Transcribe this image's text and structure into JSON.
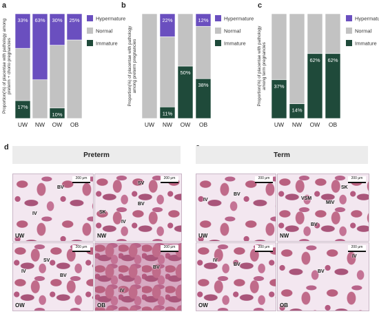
{
  "panel_letters": {
    "a": "a",
    "b": "b",
    "c": "c",
    "d": "d",
    "e": "e"
  },
  "colors": {
    "hypermature": "#6a4fbf",
    "normal": "#c2c2c2",
    "immature": "#1f4a3a"
  },
  "chart_data": [
    {
      "type": "bar",
      "stacked": true,
      "title": "",
      "ylabel": "Proportion(%) of placentae with pathology among preterm + chorio pregnancies",
      "categories": [
        "UW",
        "NW",
        "OW",
        "OB"
      ],
      "ylim": [
        0,
        100
      ],
      "legend_position": "right",
      "series": [
        {
          "name": "Immature",
          "values": [
            17,
            0,
            10,
            0
          ],
          "labels": [
            "17%",
            "",
            "10%",
            ""
          ]
        },
        {
          "name": "Normal",
          "values": [
            50,
            37,
            60,
            75
          ],
          "labels": [
            "",
            "",
            "",
            ""
          ]
        },
        {
          "name": "Hypermature",
          "values": [
            33,
            63,
            30,
            25
          ],
          "labels": [
            "33%",
            "63%",
            "30%",
            "25%"
          ]
        }
      ]
    },
    {
      "type": "bar",
      "stacked": true,
      "title": "",
      "ylabel": "Proportion(%) of placentae with pathology among preterm pregnancies",
      "categories": [
        "UW",
        "NW",
        "OW",
        "OB"
      ],
      "ylim": [
        0,
        100
      ],
      "legend_position": "right",
      "series": [
        {
          "name": "Immature",
          "values": [
            0,
            11,
            50,
            38
          ],
          "labels": [
            "",
            "11%",
            "50%",
            "38%"
          ]
        },
        {
          "name": "Normal",
          "values": [
            100,
            67,
            50,
            50
          ],
          "labels": [
            "",
            "",
            "",
            ""
          ]
        },
        {
          "name": "Hypermature",
          "values": [
            0,
            22,
            0,
            12
          ],
          "labels": [
            "",
            "22%",
            "",
            "12%"
          ]
        }
      ]
    },
    {
      "type": "bar",
      "stacked": true,
      "title": "",
      "ylabel": "Proportion(%) of placentae with pathology among term pregnancies",
      "categories": [
        "UW",
        "NW",
        "OW",
        "OB"
      ],
      "ylim": [
        0,
        100
      ],
      "legend_position": "right",
      "series": [
        {
          "name": "Immature",
          "values": [
            37,
            14,
            62,
            62
          ],
          "labels": [
            "37%",
            "14%",
            "62%",
            "62%"
          ]
        },
        {
          "name": "Normal",
          "values": [
            63,
            86,
            38,
            38
          ],
          "labels": [
            "",
            "",
            "",
            ""
          ]
        },
        {
          "name": "Hypermature",
          "values": [
            0,
            0,
            0,
            0
          ],
          "labels": [
            "",
            "",
            "",
            ""
          ]
        }
      ]
    }
  ],
  "histology": {
    "preterm": {
      "title": "Preterm",
      "images": [
        {
          "group": "UW",
          "scale": "200 μm",
          "labels": [
            "BV",
            "IV"
          ]
        },
        {
          "group": "NW",
          "scale": "200 μm",
          "labels": [
            "SV",
            "BV",
            "SK",
            "IV"
          ]
        },
        {
          "group": "OW",
          "scale": "200 μm",
          "labels": [
            "IV",
            "SV",
            "BV"
          ]
        },
        {
          "group": "OB",
          "scale": "200 μm",
          "labels": [
            "BV",
            "IV"
          ]
        }
      ]
    },
    "term": {
      "title": "Term",
      "images": [
        {
          "group": "UW",
          "scale": "200 μm",
          "labels": [
            "IV",
            "BV"
          ]
        },
        {
          "group": "NW",
          "scale": "200 μm",
          "labels": [
            "SK",
            "VSM",
            "MIV",
            "BV"
          ]
        },
        {
          "group": "OW",
          "scale": "200 μm",
          "labels": [
            "IV",
            "BV"
          ]
        },
        {
          "group": "OB",
          "scale": "200 μm",
          "labels": [
            "BV",
            "IV"
          ]
        }
      ]
    }
  }
}
